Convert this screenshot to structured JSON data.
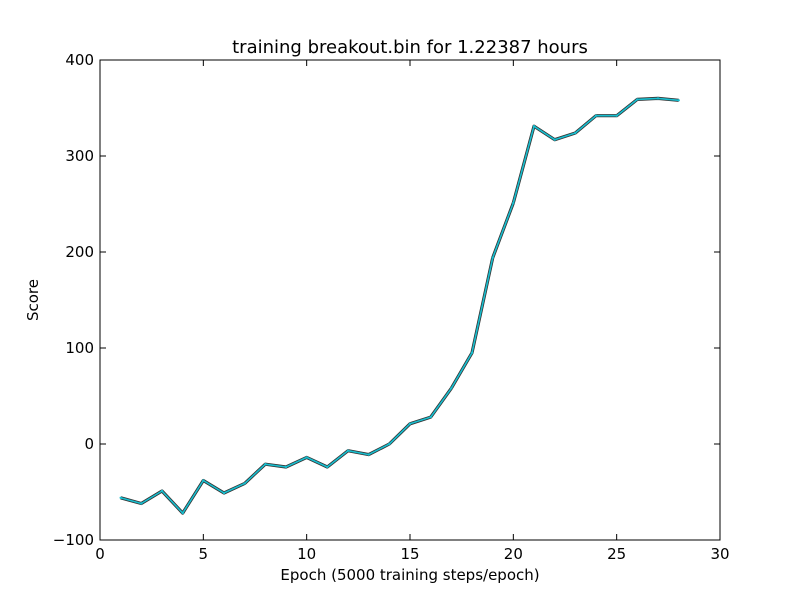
{
  "chart_data": {
    "type": "line",
    "title": "training breakout.bin for  1.22387 hours",
    "xlabel": "Epoch (5000 training steps/epoch)",
    "ylabel": "Score",
    "xlim": [
      0,
      30
    ],
    "ylim": [
      -100,
      400
    ],
    "xticks": [
      0,
      5,
      10,
      15,
      20,
      25,
      30
    ],
    "yticks": [
      -100,
      0,
      100,
      200,
      300,
      400
    ],
    "xtick_labels": [
      "0",
      "5",
      "10",
      "15",
      "20",
      "25",
      "30"
    ],
    "ytick_labels": [
      "−100",
      "0",
      "100",
      "200",
      "300",
      "400"
    ],
    "grid": false,
    "legend": "none",
    "series": [
      {
        "color": "#17becf",
        "x": [
          1,
          2,
          3,
          4,
          5,
          6,
          7,
          8,
          9,
          10,
          11,
          12,
          13,
          14,
          15,
          16,
          17,
          18,
          19,
          20,
          21,
          22,
          23,
          24,
          25,
          26,
          27,
          28
        ],
        "values": [
          -56,
          -62,
          -49,
          -72,
          -38,
          -51,
          -41,
          -21,
          -24,
          -14,
          -24,
          -7,
          -11,
          0,
          21,
          28,
          58,
          95,
          194,
          251,
          331,
          317,
          324,
          342,
          342,
          359,
          360,
          358
        ]
      }
    ]
  }
}
